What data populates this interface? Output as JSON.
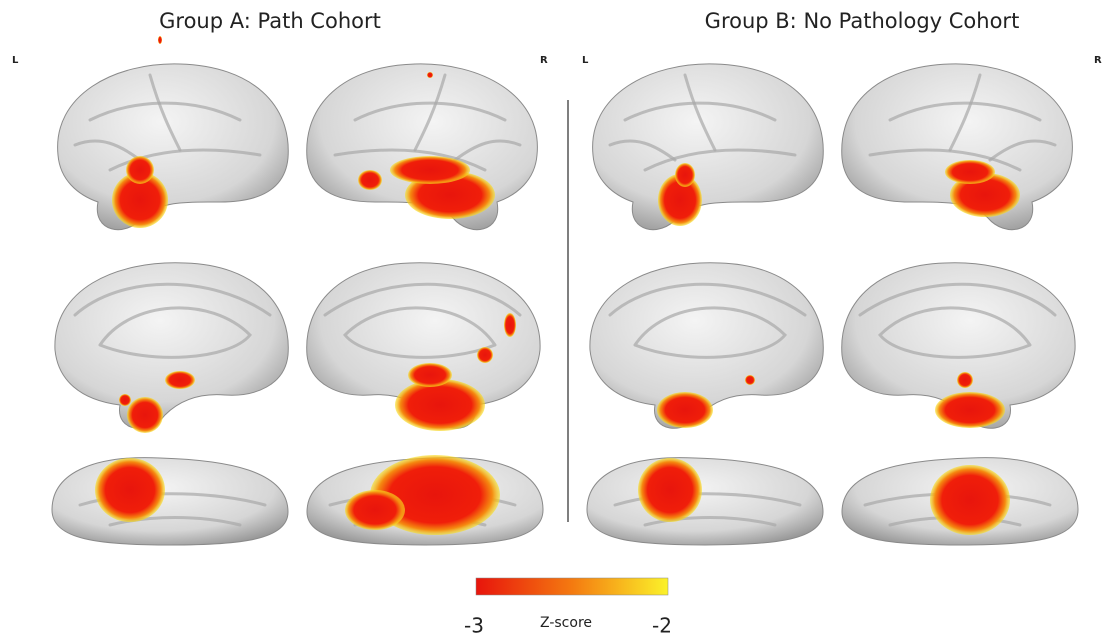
{
  "header": {
    "group_a": "Group A: Path Cohort",
    "group_b": "Group B: No Pathology  Cohort"
  },
  "hemispheres": {
    "a_left": "L",
    "a_right": "R",
    "b_left": "L",
    "b_right": "R"
  },
  "colorbar": {
    "label": "Z-score",
    "min": -3,
    "max": -2
  }
}
